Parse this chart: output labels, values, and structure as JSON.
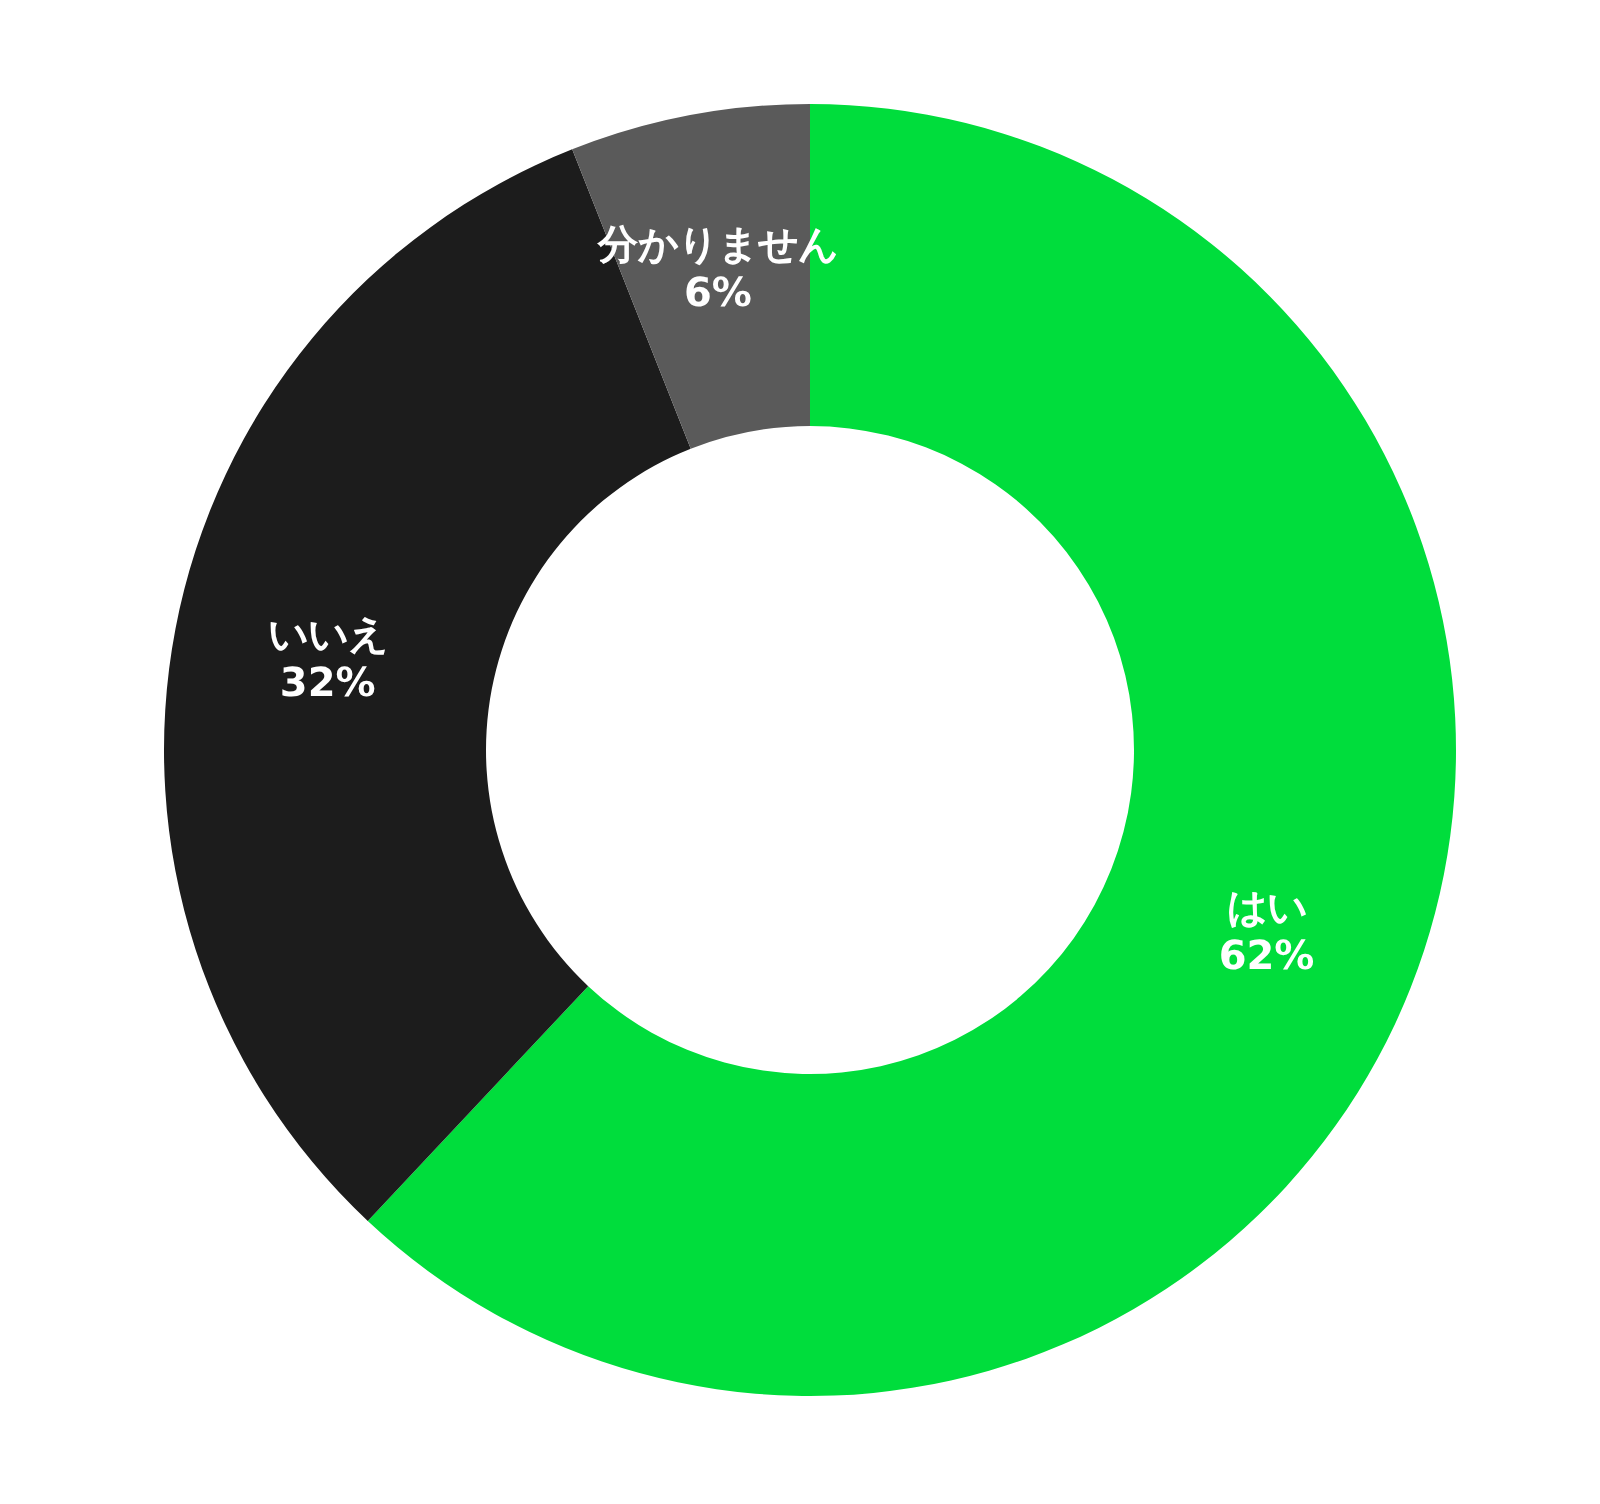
{
  "chart_data": {
    "type": "donut",
    "categories": [
      "はい",
      "いいえ",
      "分かりません"
    ],
    "values": [
      62,
      32,
      6
    ],
    "value_labels": [
      "62%",
      "32%",
      "6%"
    ],
    "colors": [
      "#00dd3c",
      "#1c1c1c",
      "#5a5a5a"
    ],
    "legend": false
  }
}
